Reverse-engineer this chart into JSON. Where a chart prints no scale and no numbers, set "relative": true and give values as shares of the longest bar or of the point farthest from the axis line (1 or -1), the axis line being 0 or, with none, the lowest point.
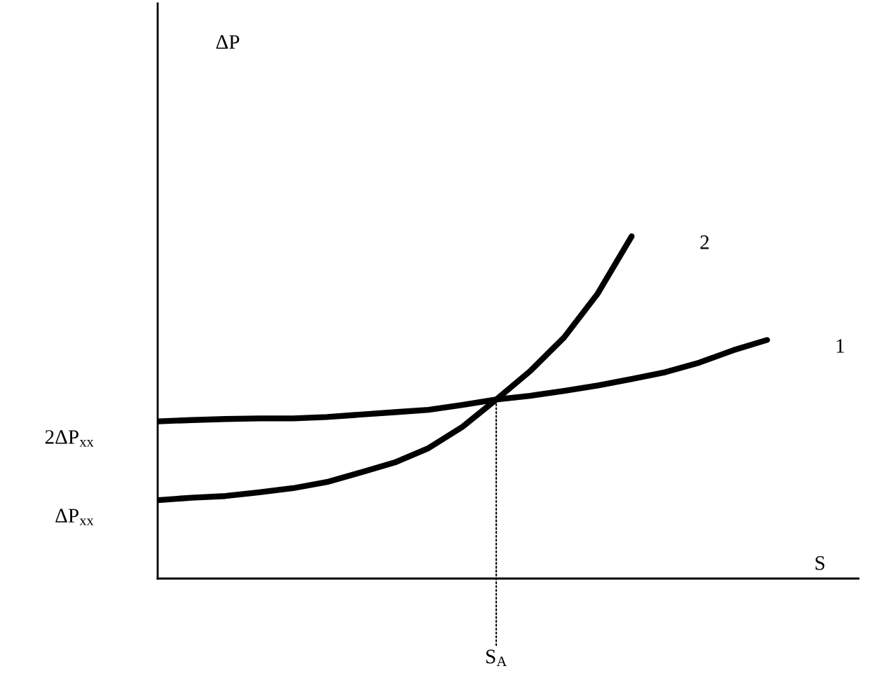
{
  "chart_data": {
    "type": "line",
    "xlabel": "S",
    "relative": true,
    "categories": [
      null,
      null,
      null,
      null,
      null,
      null,
      null,
      null,
      null,
      null,
      null,
      null,
      null,
      null,
      null,
      null,
      null,
      null,
      null
    ],
    "annotations": [
      "ΔP",
      "2ΔP$_{xx}$",
      "ΔP$_{xx}$",
      {
        "text": "S$_{A}$",
        "y": 0.523
      }
    ],
    "marker": "none",
    "series": [
      {
        "name": "1",
        "color": "#000000",
        "line_style": "solid",
        "values": [
          0.459,
          0.463,
          0.466,
          0.468,
          0.468,
          0.472,
          0.479,
          0.486,
          0.493,
          0.507,
          0.523,
          0.534,
          0.548,
          0.564,
          0.583,
          0.603,
          0.631,
          0.667,
          0.697
        ]
      },
      {
        "name": "2",
        "color": "#000000",
        "line_style": "solid",
        "values": [
          0.229,
          0.236,
          0.241,
          0.252,
          0.264,
          0.282,
          0.31,
          0.339,
          0.381,
          0.443,
          0.523,
          0.606,
          0.704,
          0.833,
          1,
          null,
          null,
          null,
          null
        ]
      }
    ]
  }
}
